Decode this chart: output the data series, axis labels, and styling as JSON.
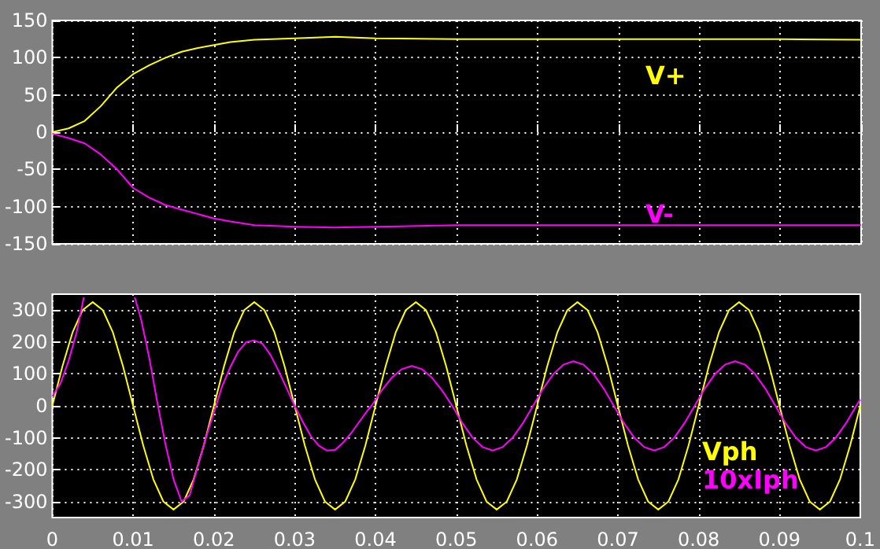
{
  "chart_data": [
    {
      "type": "line",
      "xlim": [
        0,
        0.1
      ],
      "xticks": [
        0,
        0.01,
        0.02,
        0.03,
        0.04,
        0.05,
        0.06,
        0.07,
        0.08,
        0.09,
        0.1
      ],
      "ylim": [
        -150,
        150
      ],
      "yticks": [
        -150,
        -100,
        -50,
        0,
        50,
        100,
        150
      ],
      "grid": true,
      "tick_labels": "y",
      "series": [
        {
          "name": "V+",
          "color": "#ffff00",
          "x": [
            0,
            0.002,
            0.004,
            0.006,
            0.008,
            0.01,
            0.012,
            0.014,
            0.016,
            0.018,
            0.02,
            0.022,
            0.025,
            0.03,
            0.035,
            0.04,
            0.05,
            0.06,
            0.07,
            0.08,
            0.09,
            0.1
          ],
          "values": [
            0,
            5,
            15,
            35,
            60,
            78,
            90,
            100,
            108,
            113,
            117,
            121,
            124,
            126,
            128,
            126,
            125,
            125,
            125,
            125,
            125,
            124
          ]
        },
        {
          "name": "V-",
          "color": "#ff00ff",
          "x": [
            0,
            0.002,
            0.004,
            0.006,
            0.008,
            0.01,
            0.012,
            0.014,
            0.016,
            0.018,
            0.02,
            0.022,
            0.025,
            0.03,
            0.035,
            0.04,
            0.05,
            0.06,
            0.07,
            0.08,
            0.09,
            0.1
          ],
          "values": [
            -2,
            -8,
            -15,
            -30,
            -50,
            -75,
            -88,
            -98,
            -104,
            -110,
            -116,
            -120,
            -125,
            -127,
            -128,
            -127,
            -125,
            -125,
            -125,
            -125,
            -125,
            -125
          ]
        }
      ]
    },
    {
      "type": "line",
      "xlim": [
        0,
        0.1
      ],
      "xticks": [
        0,
        0.01,
        0.02,
        0.03,
        0.04,
        0.05,
        0.06,
        0.07,
        0.08,
        0.09,
        0.1
      ],
      "ylim": [
        -350,
        350
      ],
      "yticks": [
        -300,
        -200,
        -100,
        0,
        100,
        200,
        300
      ],
      "grid": true,
      "series": [
        {
          "name": "Vph",
          "color": "#ffff00",
          "x": [
            0,
            0.00125,
            0.0025,
            0.00375,
            0.005,
            0.00625,
            0.0075,
            0.00875,
            0.01,
            0.01125,
            0.0125,
            0.01375,
            0.015,
            0.01625,
            0.0175,
            0.01875,
            0.02,
            0.02125,
            0.0225,
            0.02375,
            0.025,
            0.02625,
            0.0275,
            0.02875,
            0.03,
            0.03125,
            0.0325,
            0.03375,
            0.035,
            0.03625,
            0.0375,
            0.03875,
            0.04,
            0.04125,
            0.0425,
            0.04375,
            0.045,
            0.04625,
            0.0475,
            0.04875,
            0.05,
            0.05125,
            0.0525,
            0.05375,
            0.055,
            0.05625,
            0.0575,
            0.05875,
            0.06,
            0.06125,
            0.0625,
            0.06375,
            0.065,
            0.06625,
            0.0675,
            0.06875,
            0.07,
            0.07125,
            0.0725,
            0.07375,
            0.075,
            0.07625,
            0.0775,
            0.07875,
            0.08,
            0.08125,
            0.0825,
            0.08375,
            0.085,
            0.08625,
            0.0875,
            0.08875,
            0.09,
            0.09125,
            0.0925,
            0.09375,
            0.095,
            0.09625,
            0.0975,
            0.09875,
            0.1
          ],
          "values": [
            0,
            124,
            230,
            300,
            325,
            300,
            230,
            124,
            0,
            -124,
            -230,
            -300,
            -325,
            -300,
            -230,
            -124,
            0,
            124,
            230,
            300,
            325,
            300,
            230,
            124,
            0,
            -124,
            -230,
            -300,
            -325,
            -300,
            -230,
            -124,
            0,
            124,
            230,
            300,
            325,
            300,
            230,
            124,
            0,
            -124,
            -230,
            -300,
            -325,
            -300,
            -230,
            -124,
            0,
            124,
            230,
            300,
            325,
            300,
            230,
            124,
            0,
            -124,
            -230,
            -300,
            -325,
            -300,
            -230,
            -124,
            0,
            124,
            230,
            300,
            325,
            300,
            230,
            124,
            0,
            -124,
            -230,
            -300,
            -325,
            -300,
            -230,
            -124,
            0
          ]
        },
        {
          "name": "10xIph",
          "color": "#ff00ff",
          "x": [
            0,
            0.001,
            0.002,
            0.003,
            0.0039,
            0.0045,
            0.0102,
            0.011,
            0.012,
            0.013,
            0.014,
            0.015,
            0.016,
            0.017,
            0.018,
            0.019,
            0.02,
            0.021,
            0.022,
            0.023,
            0.024,
            0.025,
            0.026,
            0.027,
            0.028,
            0.029,
            0.03,
            0.031,
            0.032,
            0.033,
            0.034,
            0.035,
            0.036,
            0.037,
            0.038,
            0.039,
            0.0395,
            0.04075,
            0.042,
            0.04325,
            0.0445,
            0.04575,
            0.047,
            0.04825,
            0.0495,
            0.05075,
            0.052,
            0.05325,
            0.0545,
            0.05575,
            0.057,
            0.05825,
            0.0595,
            0.06075,
            0.062,
            0.06325,
            0.0645,
            0.06575,
            0.067,
            0.06825,
            0.0695,
            0.07075,
            0.072,
            0.07325,
            0.0745,
            0.07575,
            0.077,
            0.07825,
            0.0795,
            0.08075,
            0.082,
            0.08325,
            0.0845,
            0.08575,
            0.087,
            0.08825,
            0.0895,
            0.09075,
            0.092,
            0.09325,
            0.0945,
            0.09575,
            0.097,
            0.09825,
            0.0995,
            0.1
          ],
          "values": [
            30,
            70,
            140,
            230,
            340,
            null,
            340,
            270,
            150,
            10,
            -120,
            -230,
            -300,
            -280,
            -190,
            -100,
            -20,
            60,
            120,
            170,
            200,
            205,
            195,
            160,
            110,
            55,
            0,
            -50,
            -95,
            -125,
            -140,
            -138,
            -115,
            -85,
            -50,
            -15,
            0,
            48,
            88,
            115,
            125,
            115,
            88,
            48,
            0,
            -54,
            -99,
            -129,
            -140,
            -129,
            -99,
            -54,
            0,
            54,
            99,
            129,
            140,
            129,
            99,
            54,
            0,
            -54,
            -99,
            -129,
            -140,
            -129,
            -99,
            -54,
            0,
            54,
            99,
            129,
            140,
            129,
            99,
            54,
            0,
            -54,
            -99,
            -129,
            -140,
            -129,
            -99,
            -54,
            0,
            20
          ]
        }
      ]
    }
  ]
}
